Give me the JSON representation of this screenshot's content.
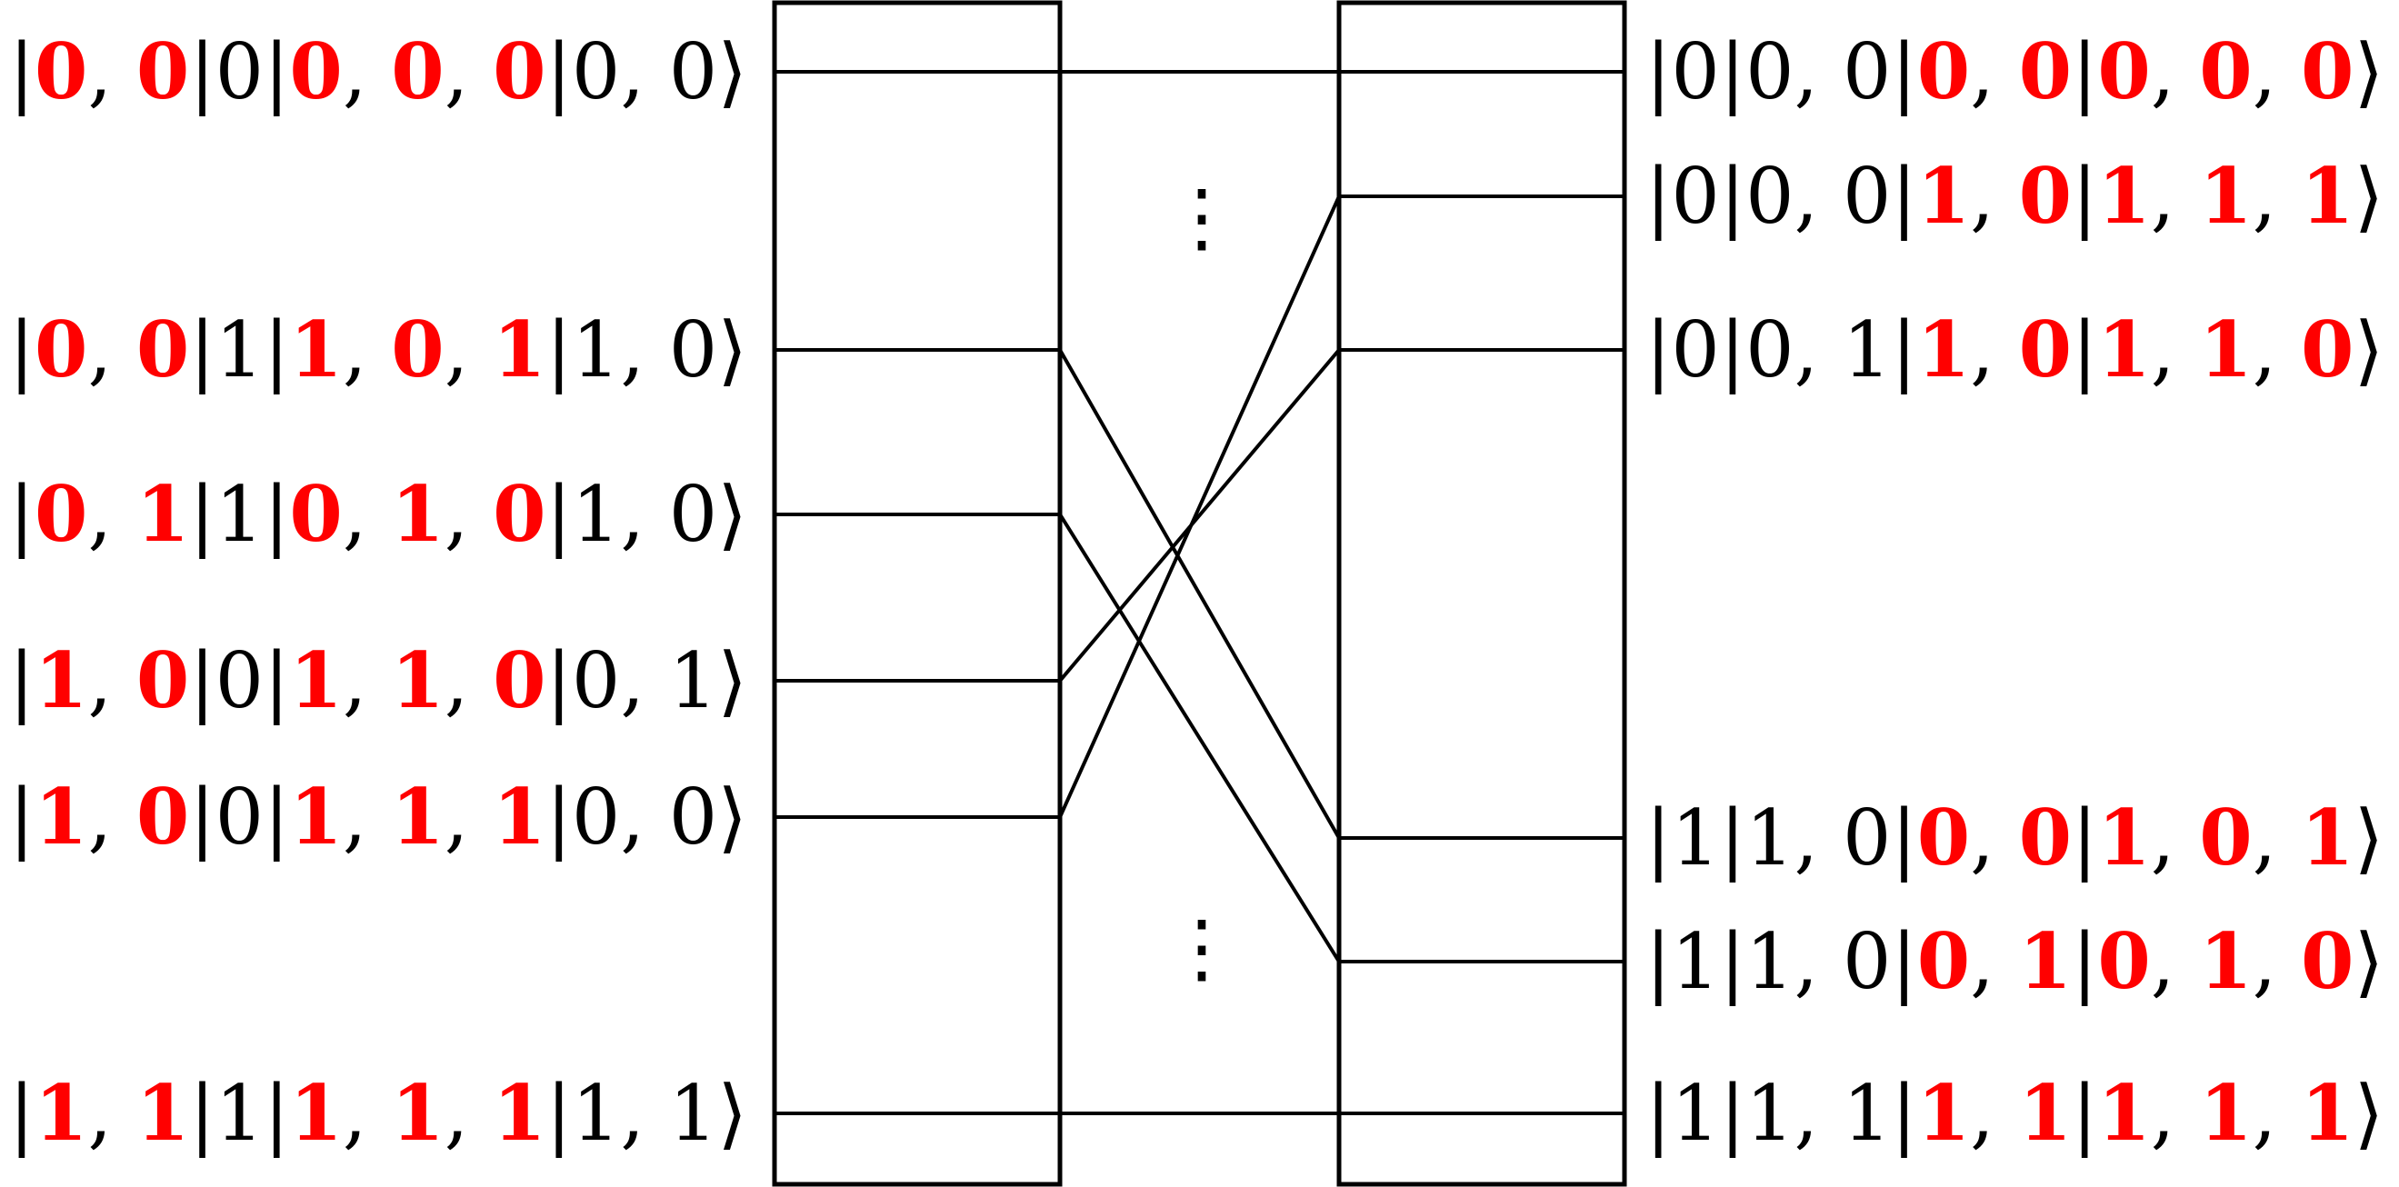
{
  "colors": {
    "highlight": "#ff0000",
    "text": "#000000",
    "line": "#000000"
  },
  "left_states": [
    {
      "groups": [
        {
          "digits": [
            "0",
            "0"
          ],
          "red": true
        },
        {
          "digits": [
            "0"
          ],
          "red": false
        },
        {
          "digits": [
            "0",
            "0",
            "0"
          ],
          "red": true
        },
        {
          "digits": [
            "0",
            "0"
          ],
          "red": false
        }
      ]
    },
    {
      "groups": [
        {
          "digits": [
            "0",
            "0"
          ],
          "red": true
        },
        {
          "digits": [
            "1"
          ],
          "red": false
        },
        {
          "digits": [
            "1",
            "0",
            "1"
          ],
          "red": true
        },
        {
          "digits": [
            "1",
            "0"
          ],
          "red": false
        }
      ]
    },
    {
      "groups": [
        {
          "digits": [
            "0",
            "1"
          ],
          "red": true
        },
        {
          "digits": [
            "1"
          ],
          "red": false
        },
        {
          "digits": [
            "0",
            "1",
            "0"
          ],
          "red": true
        },
        {
          "digits": [
            "1",
            "0"
          ],
          "red": false
        }
      ]
    },
    {
      "groups": [
        {
          "digits": [
            "1",
            "0"
          ],
          "red": true
        },
        {
          "digits": [
            "0"
          ],
          "red": false
        },
        {
          "digits": [
            "1",
            "1",
            "0"
          ],
          "red": true
        },
        {
          "digits": [
            "0",
            "1"
          ],
          "red": false
        }
      ]
    },
    {
      "groups": [
        {
          "digits": [
            "1",
            "0"
          ],
          "red": true
        },
        {
          "digits": [
            "0"
          ],
          "red": false
        },
        {
          "digits": [
            "1",
            "1",
            "1"
          ],
          "red": true
        },
        {
          "digits": [
            "0",
            "0"
          ],
          "red": false
        }
      ]
    },
    {
      "groups": [
        {
          "digits": [
            "1",
            "1"
          ],
          "red": true
        },
        {
          "digits": [
            "1"
          ],
          "red": false
        },
        {
          "digits": [
            "1",
            "1",
            "1"
          ],
          "red": true
        },
        {
          "digits": [
            "1",
            "1"
          ],
          "red": false
        }
      ]
    }
  ],
  "right_states": [
    {
      "groups": [
        {
          "digits": [
            "0"
          ],
          "red": false
        },
        {
          "digits": [
            "0",
            "0"
          ],
          "red": false
        },
        {
          "digits": [
            "0",
            "0"
          ],
          "red": true
        },
        {
          "digits": [
            "0",
            "0",
            "0"
          ],
          "red": true
        }
      ]
    },
    {
      "groups": [
        {
          "digits": [
            "0"
          ],
          "red": false
        },
        {
          "digits": [
            "0",
            "0"
          ],
          "red": false
        },
        {
          "digits": [
            "1",
            "0"
          ],
          "red": true
        },
        {
          "digits": [
            "1",
            "1",
            "1"
          ],
          "red": true
        }
      ]
    },
    {
      "groups": [
        {
          "digits": [
            "0"
          ],
          "red": false
        },
        {
          "digits": [
            "0",
            "1"
          ],
          "red": false
        },
        {
          "digits": [
            "1",
            "0"
          ],
          "red": true
        },
        {
          "digits": [
            "1",
            "1",
            "0"
          ],
          "red": true
        }
      ]
    },
    {
      "groups": [
        {
          "digits": [
            "1"
          ],
          "red": false
        },
        {
          "digits": [
            "1",
            "0"
          ],
          "red": false
        },
        {
          "digits": [
            "0",
            "0"
          ],
          "red": true
        },
        {
          "digits": [
            "1",
            "0",
            "1"
          ],
          "red": true
        }
      ]
    },
    {
      "groups": [
        {
          "digits": [
            "1"
          ],
          "red": false
        },
        {
          "digits": [
            "1",
            "0"
          ],
          "red": false
        },
        {
          "digits": [
            "0",
            "1"
          ],
          "red": true
        },
        {
          "digits": [
            "0",
            "1",
            "0"
          ],
          "red": true
        }
      ]
    },
    {
      "groups": [
        {
          "digits": [
            "1"
          ],
          "red": false
        },
        {
          "digits": [
            "1",
            "1"
          ],
          "red": false
        },
        {
          "digits": [
            "1",
            "1"
          ],
          "red": true
        },
        {
          "digits": [
            "1",
            "1",
            "1"
          ],
          "red": true
        }
      ]
    }
  ],
  "connections": [
    {
      "from": 0,
      "to": 0
    },
    {
      "from": 1,
      "to": 3
    },
    {
      "from": 2,
      "to": 4
    },
    {
      "from": 3,
      "to": 2
    },
    {
      "from": 4,
      "to": 1
    },
    {
      "from": 5,
      "to": 5
    }
  ],
  "ellipsis_glyph": "⋮"
}
